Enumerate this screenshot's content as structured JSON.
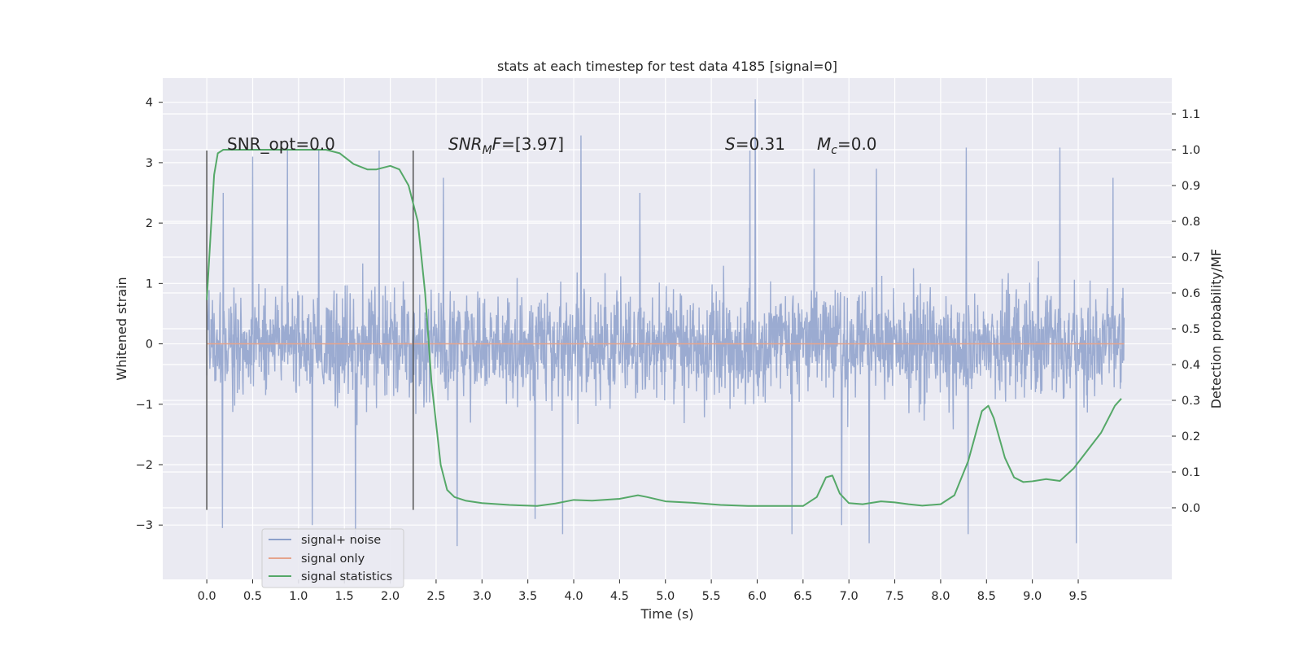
{
  "chart_data": {
    "type": "line",
    "title": "stats at each timestep for test data 4185 [signal=0]",
    "xlabel": "Time (s)",
    "ylabel": "Whitened strain",
    "ylabel_right": "Detection probability/MF",
    "xlim": [
      -0.48,
      10.52
    ],
    "ylim": [
      -3.9,
      4.4
    ],
    "ylim_right": [
      -0.2,
      1.2
    ],
    "xticks": [
      0.0,
      0.5,
      1.0,
      1.5,
      2.0,
      2.5,
      3.0,
      3.5,
      4.0,
      4.5,
      5.0,
      5.5,
      6.0,
      6.5,
      7.0,
      7.5,
      8.0,
      8.5,
      9.0,
      9.5
    ],
    "xtick_labels": [
      "0.0",
      "0.5",
      "1.0",
      "1.5",
      "2.0",
      "2.5",
      "3.0",
      "3.5",
      "4.0",
      "4.5",
      "5.0",
      "5.5",
      "6.0",
      "6.5",
      "7.0",
      "7.5",
      "8.0",
      "8.5",
      "9.0",
      "9.5"
    ],
    "yticks": [
      -3,
      -2,
      -1,
      0,
      1,
      2,
      3,
      4
    ],
    "ytick_labels": [
      "−3",
      "−2",
      "−1",
      "0",
      "1",
      "2",
      "3",
      "4"
    ],
    "yticks_right": [
      0.0,
      0.1,
      0.2,
      0.3,
      0.4,
      0.5,
      0.6,
      0.7,
      0.8,
      0.9,
      1.0,
      1.1
    ],
    "ytick_labels_right": [
      "0.0",
      "0.1",
      "0.2",
      "0.3",
      "0.4",
      "0.5",
      "0.6",
      "0.7",
      "0.8",
      "0.9",
      "1.0",
      "1.1"
    ],
    "grid": true,
    "legend_position": "lower-left",
    "annotations": {
      "snr_opt": "SNR_opt=0.0",
      "snr_mf_prefix": "SNR",
      "snr_mf_sub": "M",
      "snr_mf_suffix": "F=[3.97]",
      "s_symbol": "S",
      "s_value": "=0.31",
      "mc_symbol": "M",
      "mc_sub": "c",
      "mc_value": "=0.0"
    },
    "window_markers": {
      "x": [
        0.0,
        2.25
      ],
      "y_range": [
        -2.75,
        3.2
      ]
    },
    "series": [
      {
        "name": "signal+ noise",
        "color": "#8da0cb",
        "axis": "left",
        "x_range": [
          0.0,
          10.0
        ],
        "description_values": {
          "core_band": [
            -1.5,
            1.45
          ],
          "spikes": [
            {
              "x": 0.18,
              "y": 2.5
            },
            {
              "x": 0.5,
              "y": 3.1
            },
            {
              "x": 0.88,
              "y": 3.25
            },
            {
              "x": 1.22,
              "y": 3.2
            },
            {
              "x": 1.88,
              "y": 3.2
            },
            {
              "x": 2.58,
              "y": 2.75
            },
            {
              "x": 4.08,
              "y": 3.45
            },
            {
              "x": 4.72,
              "y": 2.5
            },
            {
              "x": 5.92,
              "y": 3.2
            },
            {
              "x": 5.98,
              "y": 4.05
            },
            {
              "x": 6.62,
              "y": 2.9
            },
            {
              "x": 7.3,
              "y": 2.9
            },
            {
              "x": 8.28,
              "y": 3.25
            },
            {
              "x": 9.3,
              "y": 3.25
            },
            {
              "x": 9.88,
              "y": 2.75
            },
            {
              "x": 0.17,
              "y": -3.05
            },
            {
              "x": 1.15,
              "y": -3.0
            },
            {
              "x": 1.62,
              "y": -3.2
            },
            {
              "x": 2.73,
              "y": -3.35
            },
            {
              "x": 3.58,
              "y": -2.9
            },
            {
              "x": 3.88,
              "y": -3.15
            },
            {
              "x": 6.38,
              "y": -3.15
            },
            {
              "x": 6.92,
              "y": -3.0
            },
            {
              "x": 7.22,
              "y": -3.3
            },
            {
              "x": 8.3,
              "y": -3.15
            },
            {
              "x": 9.48,
              "y": -3.3
            }
          ]
        }
      },
      {
        "name": "signal only",
        "color": "#e5a48c",
        "axis": "left",
        "x": [
          0.0,
          10.0
        ],
        "y": [
          0.0,
          0.0
        ]
      },
      {
        "name": "signal statistics",
        "color": "#55a868",
        "axis": "right",
        "x": [
          0.0,
          0.05,
          0.08,
          0.12,
          0.18,
          0.3,
          0.6,
          1.0,
          1.3,
          1.45,
          1.6,
          1.75,
          1.85,
          2.0,
          2.1,
          2.2,
          2.3,
          2.38,
          2.45,
          2.55,
          2.62,
          2.7,
          2.82,
          3.0,
          3.3,
          3.6,
          3.8,
          4.0,
          4.2,
          4.5,
          4.7,
          4.8,
          5.0,
          5.3,
          5.6,
          5.9,
          6.2,
          6.5,
          6.65,
          6.75,
          6.82,
          6.9,
          7.0,
          7.15,
          7.35,
          7.5,
          7.65,
          7.8,
          8.0,
          8.15,
          8.3,
          8.45,
          8.52,
          8.58,
          8.7,
          8.8,
          8.9,
          9.0,
          9.15,
          9.3,
          9.45,
          9.6,
          9.75,
          9.9,
          9.97
        ],
        "y": [
          0.58,
          0.8,
          0.93,
          0.99,
          1.0,
          1.0,
          1.0,
          1.0,
          1.0,
          0.99,
          0.96,
          0.945,
          0.945,
          0.955,
          0.945,
          0.9,
          0.8,
          0.6,
          0.35,
          0.12,
          0.05,
          0.03,
          0.02,
          0.013,
          0.008,
          0.005,
          0.012,
          0.022,
          0.02,
          0.025,
          0.035,
          0.03,
          0.018,
          0.014,
          0.008,
          0.005,
          0.005,
          0.005,
          0.03,
          0.085,
          0.09,
          0.04,
          0.013,
          0.01,
          0.018,
          0.015,
          0.01,
          0.006,
          0.01,
          0.035,
          0.13,
          0.27,
          0.285,
          0.25,
          0.14,
          0.085,
          0.072,
          0.074,
          0.08,
          0.075,
          0.11,
          0.16,
          0.21,
          0.285,
          0.305
        ]
      }
    ]
  }
}
